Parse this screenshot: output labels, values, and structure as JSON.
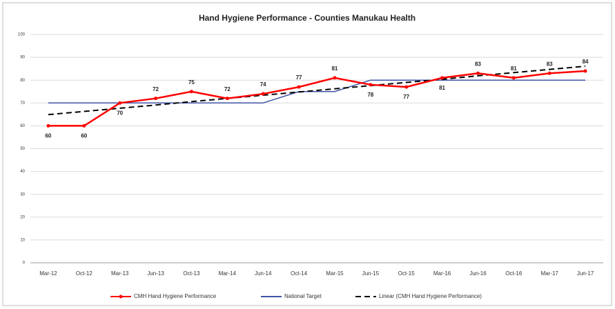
{
  "chart_data": {
    "type": "line",
    "title": "Hand Hygiene Performance - Counties Manukau Health",
    "categories": [
      "Mar-12",
      "Oct-12",
      "Mar-13",
      "Jun-13",
      "Oct-13",
      "Mar-14",
      "Jun-14",
      "Oct-14",
      "Mar-15",
      "Jun-15",
      "Oct-15",
      "Mar-16",
      "Jun-16",
      "Oct-16",
      "Mar-17",
      "Jun-17"
    ],
    "series": [
      {
        "name": "CMH Hand Hygiene Performance",
        "color": "#ff0000",
        "values": [
          60,
          60,
          70,
          72,
          75,
          72,
          74,
          77,
          81,
          78,
          77,
          81,
          83,
          81,
          83,
          84
        ],
        "data_labels": true
      },
      {
        "name": "National Target",
        "color": "#3f51a5",
        "values": [
          70,
          70,
          70,
          70,
          70,
          70,
          70,
          75,
          75,
          80,
          80,
          80,
          80,
          80,
          80,
          80
        ]
      },
      {
        "name": "Linear (CMH Hand Hygiene Performance)",
        "color": "#000000",
        "dashed": true,
        "values": [
          64.9,
          66.3,
          67.7,
          69.1,
          70.6,
          72.0,
          73.4,
          74.8,
          76.2,
          77.6,
          79.0,
          80.4,
          81.9,
          83.3,
          84.7,
          86.1
        ]
      }
    ],
    "ylim": [
      0,
      100
    ],
    "yticks": [
      0,
      10,
      20,
      30,
      40,
      50,
      60,
      70,
      80,
      90,
      100
    ],
    "grid": true,
    "legend": "bottom"
  }
}
